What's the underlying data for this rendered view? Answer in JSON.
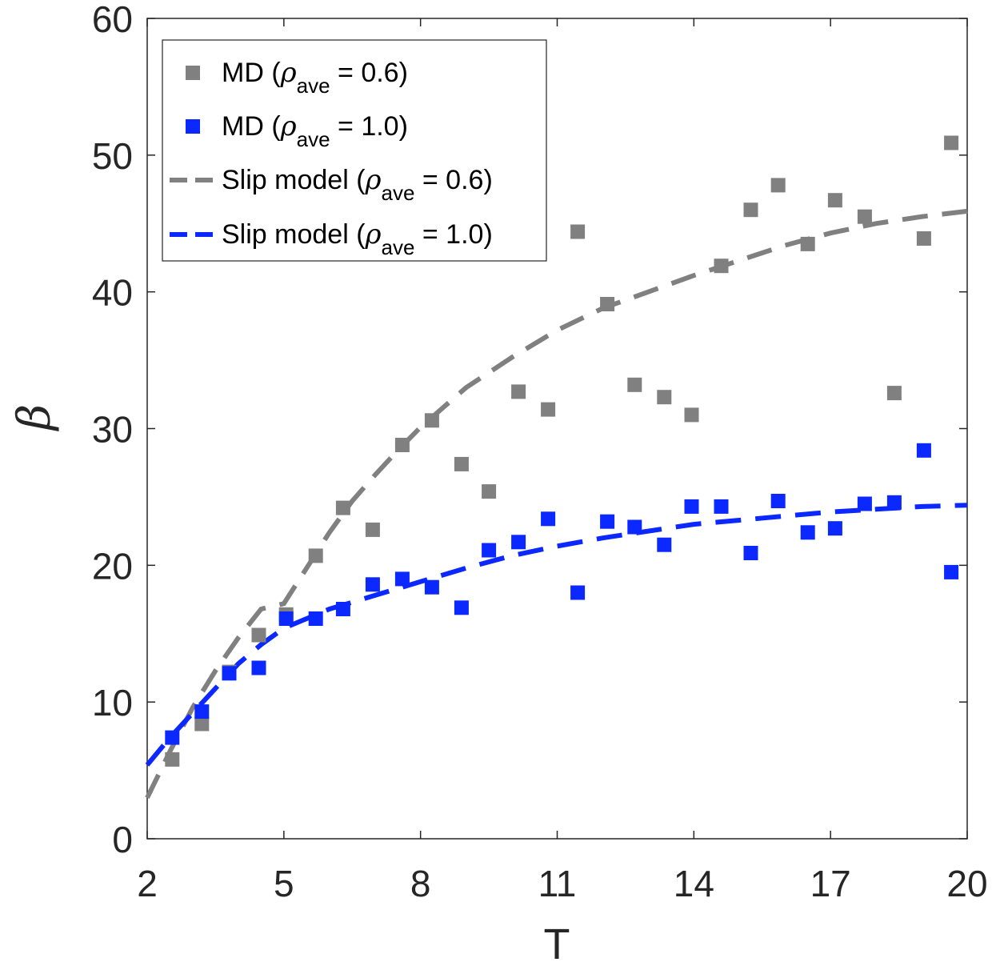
{
  "chart_data": {
    "type": "scatter",
    "xlabel": "T",
    "ylabel": "β",
    "xlim": [
      2,
      20
    ],
    "ylim": [
      0,
      60
    ],
    "xticks": [
      2,
      5,
      8,
      11,
      14,
      17,
      20
    ],
    "yticks": [
      0,
      10,
      20,
      30,
      40,
      50,
      60
    ],
    "grid": false,
    "legend_placement": "top-left",
    "colors": {
      "gray": "#808080",
      "blue": "#0a28ff"
    },
    "legend": [
      {
        "prefix": "MD (",
        "sym": "ρ",
        "sub": "ave",
        "suffix": " = 0.6)",
        "marker": "square",
        "color": "#808080"
      },
      {
        "prefix": "MD (",
        "sym": "ρ",
        "sub": "ave",
        "suffix": " = 1.0)",
        "marker": "square",
        "color": "#0a28ff"
      },
      {
        "prefix": "Slip model (",
        "sym": "ρ",
        "sub": "ave",
        "suffix": " = 0.6)",
        "marker": "dashed",
        "color": "#808080"
      },
      {
        "prefix": "Slip model (",
        "sym": "ρ",
        "sub": "ave",
        "suffix": " = 1.0)",
        "marker": "dashed",
        "color": "#0a28ff"
      }
    ],
    "series": [
      {
        "kind": "scatter",
        "color": "#808080",
        "x": [
          2.55,
          3.2,
          3.8,
          4.45,
          5.05,
          5.7,
          6.3,
          6.95,
          7.6,
          8.25,
          8.9,
          9.5,
          10.15,
          10.8,
          11.45,
          12.1,
          12.7,
          13.35,
          13.95,
          14.6,
          15.25,
          15.85,
          16.5,
          17.1,
          17.75,
          18.4,
          19.05,
          19.65
        ],
        "y": [
          5.8,
          8.4,
          12.2,
          14.9,
          16.4,
          20.7,
          24.2,
          22.6,
          28.8,
          30.6,
          27.4,
          25.4,
          32.7,
          31.4,
          44.4,
          39.1,
          33.2,
          32.3,
          31.0,
          41.9,
          46.0,
          47.8,
          43.5,
          46.7,
          45.5,
          32.6,
          43.9,
          50.9
        ]
      },
      {
        "kind": "scatter",
        "color": "#0a28ff",
        "x": [
          2.55,
          3.2,
          3.8,
          4.45,
          5.05,
          5.7,
          6.3,
          6.95,
          7.6,
          8.25,
          8.9,
          9.5,
          10.15,
          10.8,
          11.45,
          12.1,
          12.7,
          13.35,
          13.95,
          14.6,
          15.25,
          15.85,
          16.5,
          17.1,
          17.75,
          18.4,
          19.05,
          19.65
        ],
        "y": [
          7.4,
          9.3,
          12.1,
          12.5,
          16.1,
          16.1,
          16.8,
          18.6,
          19.0,
          18.4,
          16.9,
          21.1,
          21.7,
          23.4,
          18.0,
          23.2,
          22.8,
          21.5,
          24.3,
          24.3,
          20.9,
          24.7,
          22.4,
          22.7,
          24.5,
          24.6,
          28.4,
          19.5
        ]
      },
      {
        "kind": "line",
        "color": "#808080",
        "x": [
          2,
          2.5,
          3,
          3.5,
          4,
          4.5,
          5,
          5.5,
          6,
          6.5,
          7,
          7.5,
          8,
          9,
          10,
          11,
          12,
          13,
          14,
          15,
          16,
          17,
          18,
          19,
          20
        ],
        "y": [
          3.0,
          6.4,
          9.6,
          12.3,
          14.7,
          16.8,
          17.2,
          19.8,
          22.4,
          24.7,
          26.6,
          28.4,
          30.1,
          33.0,
          35.2,
          37.2,
          38.8,
          40.0,
          41.2,
          42.3,
          43.4,
          44.3,
          45.0,
          45.5,
          45.9
        ]
      },
      {
        "kind": "line",
        "color": "#0a28ff",
        "x": [
          2,
          2.5,
          3,
          3.5,
          4,
          4.5,
          5,
          5.5,
          6,
          6.5,
          7,
          7.5,
          8,
          9,
          10,
          11,
          12,
          13,
          14,
          15,
          16,
          17,
          18,
          19,
          20
        ],
        "y": [
          5.4,
          7.4,
          9.2,
          11.0,
          12.8,
          14.2,
          15.4,
          16.1,
          16.8,
          17.3,
          17.8,
          18.3,
          18.8,
          19.8,
          20.7,
          21.4,
          22.0,
          22.5,
          23.0,
          23.3,
          23.6,
          23.9,
          24.1,
          24.3,
          24.4
        ]
      }
    ]
  }
}
